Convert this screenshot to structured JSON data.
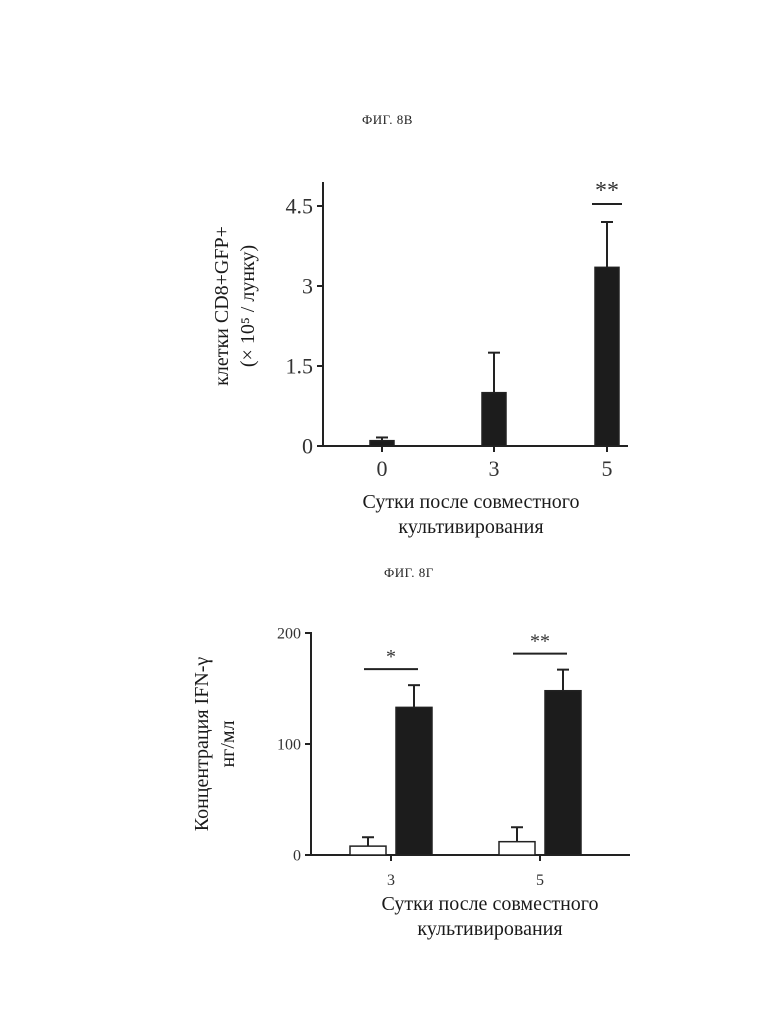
{
  "figures": {
    "top": {
      "title": "ФИГ. 8B"
    },
    "bottom": {
      "title": "ФИГ. 8Г"
    }
  },
  "colors": {
    "filled_bar": "#1c1c1c",
    "open_bar": "#ffffff",
    "axis": "#222222"
  },
  "chart_data": [
    {
      "type": "bar",
      "title": "ФИГ. 8B",
      "categories": [
        "0",
        "3",
        "5"
      ],
      "series": [
        {
          "values": [
            0.1,
            1.0,
            3.35
          ],
          "errors": [
            0.06,
            0.75,
            0.85
          ],
          "color": "#1c1c1c"
        }
      ],
      "ylabel_lines": [
        "клетки CD8+GFP+",
        "(× 10⁵ / лунку)"
      ],
      "xlabel_lines": [
        "Сутки после совместного",
        "культивирования"
      ],
      "yticks": [
        "0",
        "1.5",
        "3",
        "4.5"
      ],
      "ylim": [
        0,
        4.5
      ],
      "significance": [
        {
          "category": "5",
          "label": "**"
        }
      ]
    },
    {
      "type": "bar",
      "title": "ФИГ. 8Г",
      "categories": [
        "3",
        "5"
      ],
      "series": [
        {
          "values": [
            8,
            12
          ],
          "errors": [
            8,
            13
          ],
          "color": "#ffffff"
        },
        {
          "values": [
            133,
            148
          ],
          "errors": [
            20,
            19
          ],
          "color": "#1c1c1c"
        }
      ],
      "ylabel_lines": [
        "Концентрация IFN-γ",
        "нг/мл"
      ],
      "xlabel_lines": [
        "Сутки после совместного",
        "культивирования"
      ],
      "yticks": [
        "0",
        "100",
        "200"
      ],
      "ylim": [
        0,
        200
      ],
      "significance": [
        {
          "category": "3",
          "label": "*"
        },
        {
          "category": "5",
          "label": "**"
        }
      ]
    }
  ]
}
